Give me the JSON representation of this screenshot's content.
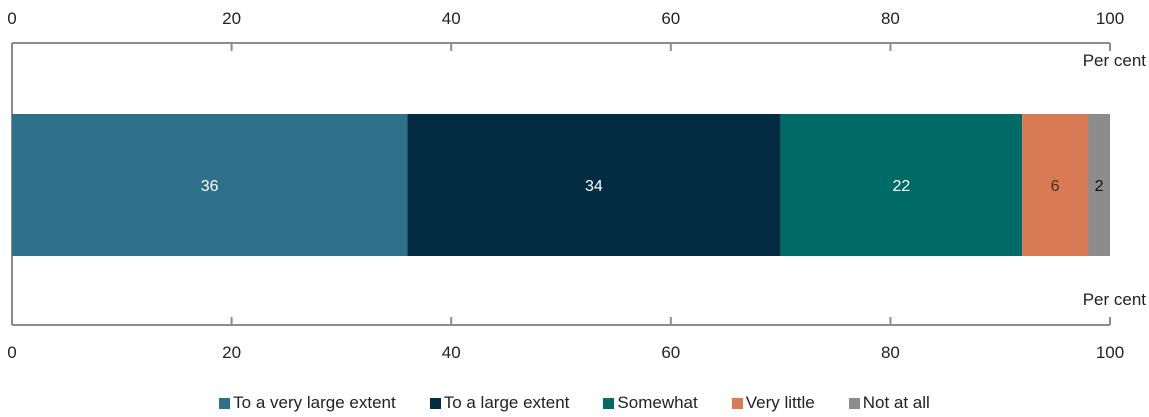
{
  "chart_data": {
    "type": "bar",
    "orientation": "horizontal",
    "stacked": true,
    "unit_label": "Per cent",
    "xlim": [
      0,
      100
    ],
    "ticks": [
      "0",
      "20",
      "40",
      "60",
      "80",
      "100"
    ],
    "series": [
      {
        "name": "To a very large extent",
        "value": 36,
        "label": "36",
        "color": "#2E6F8A",
        "label_color": "#FFFFFF"
      },
      {
        "name": "To a large extent",
        "value": 34,
        "label": "34",
        "color": "#032B42",
        "label_color": "#FFFFFF"
      },
      {
        "name": "Somewhat",
        "value": 22,
        "label": "22",
        "color": "#006A66",
        "label_color": "#FFFFFF"
      },
      {
        "name": "Very little",
        "value": 6,
        "label": "6",
        "color": "#D87B54",
        "label_color": "#4A2A1C"
      },
      {
        "name": "Not at all",
        "value": 2,
        "label": "2",
        "color": "#8C8C8C",
        "label_color": "#111111"
      }
    ],
    "legend_position": "bottom",
    "grid": false
  }
}
